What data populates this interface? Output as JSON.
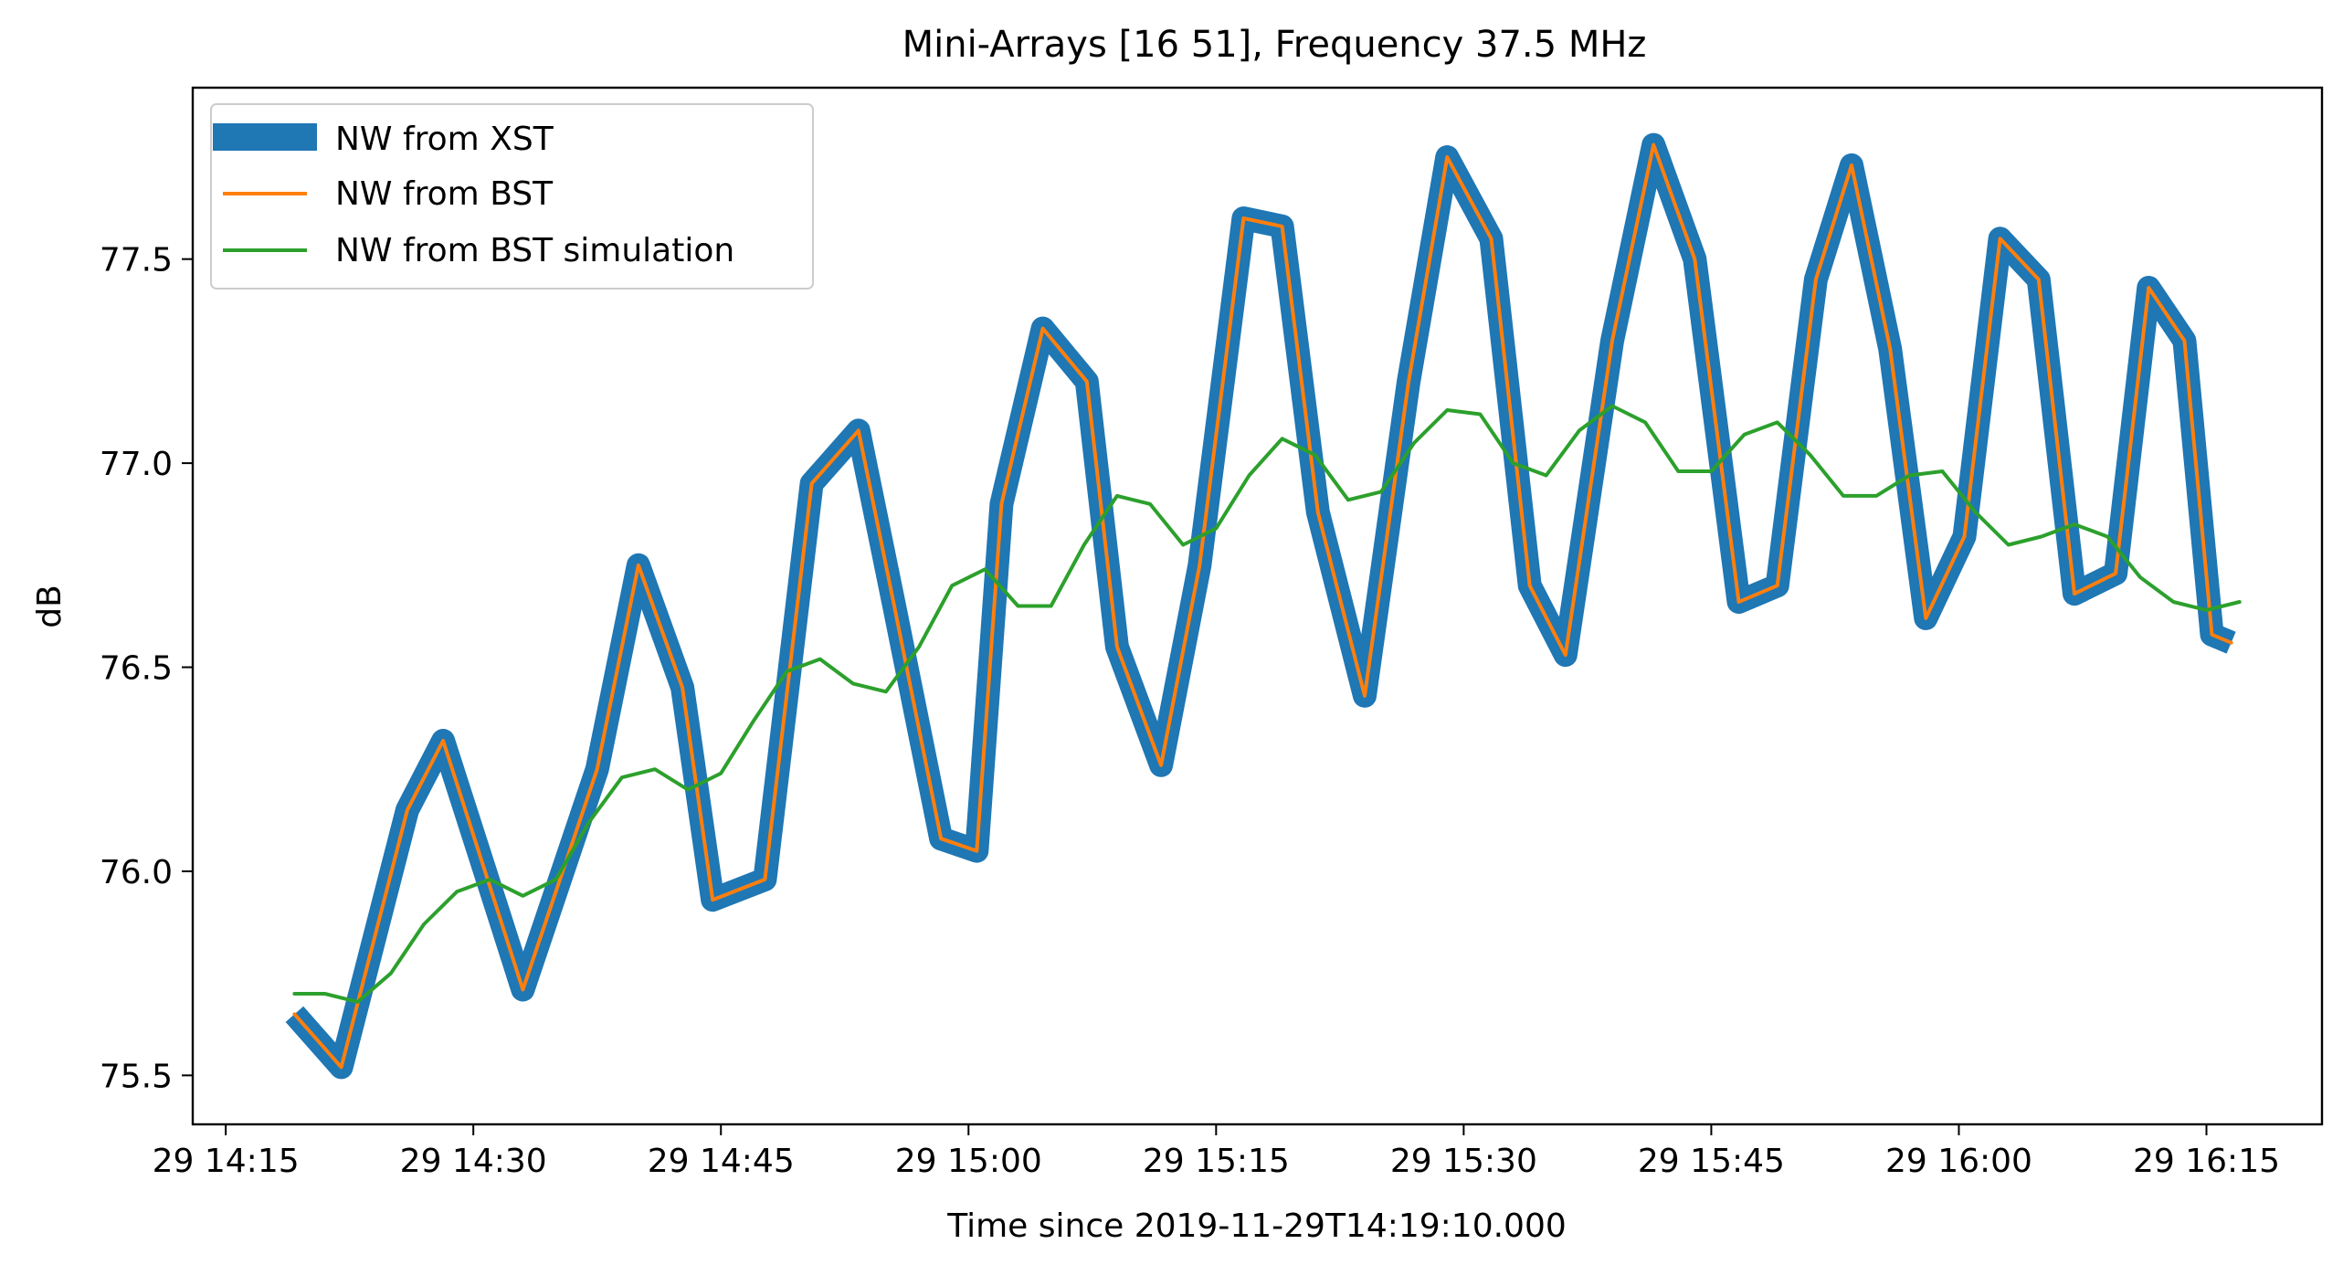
{
  "chart_data": {
    "type": "line",
    "title": "Mini-Arrays [16 51], Frequency 37.5 MHz",
    "xlabel": "Time since 2019-11-29T14:19:10.000",
    "ylabel": "dB",
    "x_unit": "minutes",
    "xlim": [
      "2019-11-29T14:13:00",
      "2019-11-29T16:22:00"
    ],
    "ylim": [
      75.38,
      77.92
    ],
    "x_ticks": [
      {
        "t": "2019-11-29T14:15:00",
        "label": "29 14:15"
      },
      {
        "t": "2019-11-29T14:30:00",
        "label": "29 14:30"
      },
      {
        "t": "2019-11-29T14:45:00",
        "label": "29 14:45"
      },
      {
        "t": "2019-11-29T15:00:00",
        "label": "29 15:00"
      },
      {
        "t": "2019-11-29T15:15:00",
        "label": "29 15:15"
      },
      {
        "t": "2019-11-29T15:30:00",
        "label": "29 15:30"
      },
      {
        "t": "2019-11-29T15:45:00",
        "label": "29 15:45"
      },
      {
        "t": "2019-11-29T16:00:00",
        "label": "29 16:00"
      },
      {
        "t": "2019-11-29T16:15:00",
        "label": "29 16:15"
      }
    ],
    "y_ticks": [
      {
        "v": 75.5,
        "label": "75.5"
      },
      {
        "v": 76.0,
        "label": "76.0"
      },
      {
        "v": 76.5,
        "label": "76.5"
      },
      {
        "v": 77.0,
        "label": "77.0"
      },
      {
        "v": 77.5,
        "label": "77.5"
      }
    ],
    "grid": false,
    "legend_position": "upper-left",
    "series": [
      {
        "name": "NW from XST",
        "color": "#1f77b4",
        "style": "thick",
        "x": [
          "2019-11-29T14:19:10",
          "2019-11-29T14:22:00",
          "2019-11-29T14:26:00",
          "2019-11-29T14:28:10",
          "2019-11-29T14:31:30",
          "2019-11-29T14:33:00",
          "2019-11-29T14:37:30",
          "2019-11-29T14:40:00",
          "2019-11-29T14:42:40",
          "2019-11-29T14:44:30",
          "2019-11-29T14:47:40",
          "2019-11-29T14:50:30",
          "2019-11-29T14:53:20",
          "2019-11-29T14:55:30",
          "2019-11-29T14:58:20",
          "2019-11-29T15:00:30",
          "2019-11-29T15:02:00",
          "2019-11-29T15:04:30",
          "2019-11-29T15:07:10",
          "2019-11-29T15:09:00",
          "2019-11-29T15:11:40",
          "2019-11-29T15:14:00",
          "2019-11-29T15:16:40",
          "2019-11-29T15:19:00",
          "2019-11-29T15:21:10",
          "2019-11-29T15:24:00",
          "2019-11-29T15:26:40",
          "2019-11-29T15:29:00",
          "2019-11-29T15:31:40",
          "2019-11-29T15:34:00",
          "2019-11-29T15:36:10",
          "2019-11-29T15:39:00",
          "2019-11-29T15:41:30",
          "2019-11-29T15:44:00",
          "2019-11-29T15:46:40",
          "2019-11-29T15:49:00",
          "2019-11-29T15:51:20",
          "2019-11-29T15:53:30",
          "2019-11-29T15:55:50",
          "2019-11-29T15:58:00",
          "2019-11-29T16:00:20",
          "2019-11-29T16:02:30",
          "2019-11-29T16:04:50",
          "2019-11-29T16:07:00",
          "2019-11-29T16:09:30",
          "2019-11-29T16:11:30",
          "2019-11-29T16:13:40",
          "2019-11-29T16:15:20",
          "2019-11-29T16:16:30"
        ],
        "y": [
          75.65,
          75.52,
          76.15,
          76.32,
          75.9,
          75.71,
          76.25,
          76.75,
          76.45,
          75.93,
          75.98,
          76.95,
          77.08,
          76.65,
          76.08,
          76.05,
          76.9,
          77.33,
          77.2,
          76.55,
          76.26,
          76.75,
          77.6,
          77.58,
          76.88,
          76.43,
          77.2,
          77.75,
          77.55,
          76.7,
          76.53,
          77.3,
          77.78,
          77.5,
          76.66,
          76.7,
          77.45,
          77.73,
          77.28,
          76.62,
          76.82,
          77.55,
          77.45,
          76.68,
          76.73,
          77.43,
          77.3,
          76.58,
          76.56
        ]
      },
      {
        "name": "NW from BST",
        "color": "#ff7f0e",
        "style": "thin",
        "x": [
          "2019-11-29T14:19:10",
          "2019-11-29T14:22:00",
          "2019-11-29T14:26:00",
          "2019-11-29T14:28:10",
          "2019-11-29T14:31:30",
          "2019-11-29T14:33:00",
          "2019-11-29T14:37:30",
          "2019-11-29T14:40:00",
          "2019-11-29T14:42:40",
          "2019-11-29T14:44:30",
          "2019-11-29T14:47:40",
          "2019-11-29T14:50:30",
          "2019-11-29T14:53:20",
          "2019-11-29T14:55:30",
          "2019-11-29T14:58:20",
          "2019-11-29T15:00:30",
          "2019-11-29T15:02:00",
          "2019-11-29T15:04:30",
          "2019-11-29T15:07:10",
          "2019-11-29T15:09:00",
          "2019-11-29T15:11:40",
          "2019-11-29T15:14:00",
          "2019-11-29T15:16:40",
          "2019-11-29T15:19:00",
          "2019-11-29T15:21:10",
          "2019-11-29T15:24:00",
          "2019-11-29T15:26:40",
          "2019-11-29T15:29:00",
          "2019-11-29T15:31:40",
          "2019-11-29T15:34:00",
          "2019-11-29T15:36:10",
          "2019-11-29T15:39:00",
          "2019-11-29T15:41:30",
          "2019-11-29T15:44:00",
          "2019-11-29T15:46:40",
          "2019-11-29T15:49:00",
          "2019-11-29T15:51:20",
          "2019-11-29T15:53:30",
          "2019-11-29T15:55:50",
          "2019-11-29T15:58:00",
          "2019-11-29T16:00:20",
          "2019-11-29T16:02:30",
          "2019-11-29T16:04:50",
          "2019-11-29T16:07:00",
          "2019-11-29T16:09:30",
          "2019-11-29T16:11:30",
          "2019-11-29T16:13:40",
          "2019-11-29T16:15:20",
          "2019-11-29T16:16:30"
        ],
        "y": [
          75.65,
          75.52,
          76.15,
          76.32,
          75.9,
          75.71,
          76.25,
          76.75,
          76.45,
          75.93,
          75.98,
          76.95,
          77.08,
          76.65,
          76.08,
          76.05,
          76.9,
          77.33,
          77.2,
          76.55,
          76.26,
          76.75,
          77.6,
          77.58,
          76.88,
          76.43,
          77.2,
          77.75,
          77.55,
          76.7,
          76.53,
          77.3,
          77.78,
          77.5,
          76.66,
          76.7,
          77.45,
          77.73,
          77.28,
          76.62,
          76.82,
          77.55,
          77.45,
          76.68,
          76.73,
          77.43,
          77.3,
          76.58,
          76.56
        ]
      },
      {
        "name": "NW from BST simulation",
        "color": "#2ca02c",
        "style": "thin",
        "x": [
          "2019-11-29T14:19:10",
          "2019-11-29T14:21:00",
          "2019-11-29T14:23:00",
          "2019-11-29T14:25:00",
          "2019-11-29T14:27:00",
          "2019-11-29T14:29:00",
          "2019-11-29T14:31:00",
          "2019-11-29T14:33:00",
          "2019-11-29T14:35:00",
          "2019-11-29T14:37:00",
          "2019-11-29T14:39:00",
          "2019-11-29T14:41:00",
          "2019-11-29T14:43:00",
          "2019-11-29T14:45:00",
          "2019-11-29T14:47:00",
          "2019-11-29T14:49:00",
          "2019-11-29T14:51:00",
          "2019-11-29T14:53:00",
          "2019-11-29T14:55:00",
          "2019-11-29T14:57:00",
          "2019-11-29T14:59:00",
          "2019-11-29T15:01:00",
          "2019-11-29T15:03:00",
          "2019-11-29T15:05:00",
          "2019-11-29T15:07:00",
          "2019-11-29T15:09:00",
          "2019-11-29T15:11:00",
          "2019-11-29T15:13:00",
          "2019-11-29T15:15:00",
          "2019-11-29T15:17:00",
          "2019-11-29T15:19:00",
          "2019-11-29T15:21:00",
          "2019-11-29T15:23:00",
          "2019-11-29T15:25:00",
          "2019-11-29T15:27:00",
          "2019-11-29T15:29:00",
          "2019-11-29T15:31:00",
          "2019-11-29T15:33:00",
          "2019-11-29T15:35:00",
          "2019-11-29T15:37:00",
          "2019-11-29T15:39:00",
          "2019-11-29T15:41:00",
          "2019-11-29T15:43:00",
          "2019-11-29T15:45:00",
          "2019-11-29T15:47:00",
          "2019-11-29T15:49:00",
          "2019-11-29T15:51:00",
          "2019-11-29T15:53:00",
          "2019-11-29T15:55:00",
          "2019-11-29T15:57:00",
          "2019-11-29T15:59:00",
          "2019-11-29T16:01:00",
          "2019-11-29T16:03:00",
          "2019-11-29T16:05:00",
          "2019-11-29T16:07:00",
          "2019-11-29T16:09:00",
          "2019-11-29T16:11:00",
          "2019-11-29T16:13:00",
          "2019-11-29T16:15:00",
          "2019-11-29T16:17:00"
        ],
        "y": [
          75.7,
          75.7,
          75.68,
          75.75,
          75.87,
          75.95,
          75.98,
          75.94,
          75.98,
          76.12,
          76.23,
          76.25,
          76.2,
          76.24,
          76.37,
          76.49,
          76.52,
          76.46,
          76.44,
          76.55,
          76.7,
          76.74,
          76.65,
          76.65,
          76.8,
          76.92,
          76.9,
          76.8,
          76.84,
          76.97,
          77.06,
          77.02,
          76.91,
          76.93,
          77.05,
          77.13,
          77.12,
          77.0,
          76.97,
          77.08,
          77.14,
          77.1,
          76.98,
          76.98,
          77.07,
          77.1,
          77.02,
          76.92,
          76.92,
          76.97,
          76.98,
          76.88,
          76.8,
          76.82,
          76.85,
          76.82,
          76.72,
          76.66,
          76.64,
          76.66
        ]
      }
    ]
  }
}
